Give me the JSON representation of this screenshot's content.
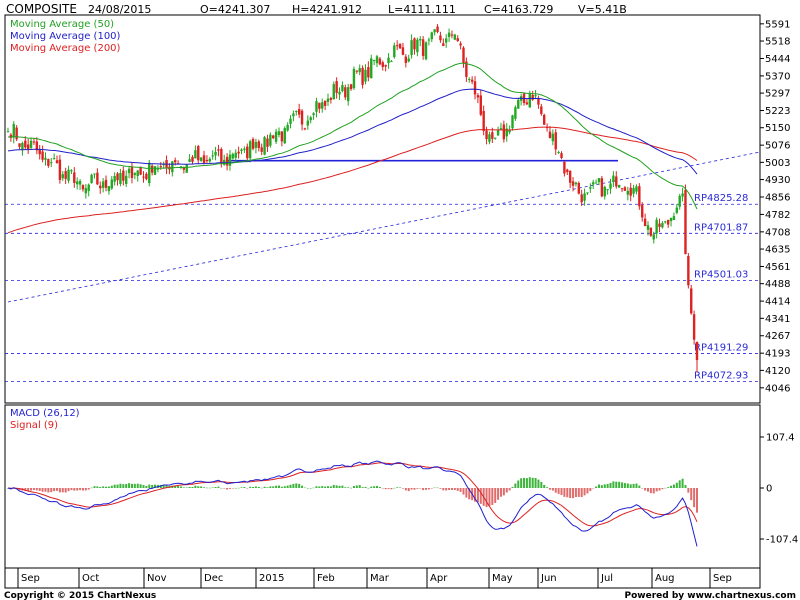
{
  "header": {
    "symbol": "COMPOSITE",
    "date": "24/08/2015",
    "open": "O=4241.307",
    "high": "H=4241.912",
    "low": "L=4111.111",
    "close": "C=4163.729",
    "volume": "V=5.41B"
  },
  "footer": {
    "copyright": "Copyright © 2015 ChartNexus",
    "powered": "Powered by www.chartnexus.com"
  },
  "colors": {
    "up": "#22a822",
    "down": "#dd2222",
    "ma50": "#22a022",
    "ma100": "#1f1fc8",
    "ma200": "#dd2020",
    "trend": "#2222dd",
    "macd": "#1f1fd0",
    "signal": "#dd2020"
  },
  "chart_data": [
    {
      "type": "candlestick",
      "title": "COMPOSITE",
      "ylim": [
        3990,
        5620
      ],
      "y_ticks": [
        "5591",
        "5518",
        "5444",
        "5370",
        "5297",
        "5223",
        "5150",
        "5076",
        "5003",
        "4930",
        "4856",
        "4782",
        "4708",
        "4635",
        "4561",
        "4488",
        "4414",
        "4341",
        "4267",
        "4193",
        "4120",
        "4046"
      ],
      "x_ticks": [
        "Sep",
        "Oct",
        "Nov",
        "Dec",
        "2015",
        "Feb",
        "Mar",
        "Apr",
        "May",
        "Jun",
        "Jul",
        "Aug",
        "Sep"
      ],
      "legend": [
        {
          "name": "Moving Average (50)",
          "color": "#22a022"
        },
        {
          "name": "Moving Average (100)",
          "color": "#1f1fc8"
        },
        {
          "name": "Moving Average (200)",
          "color": "#dd2020"
        }
      ],
      "resistance_levels": [
        {
          "label": "RP4825.28",
          "value": 4825.28
        },
        {
          "label": "RP4701.87",
          "value": 4701.87
        },
        {
          "label": "RP4501.03",
          "value": 4501.03
        },
        {
          "label": "RP4191.29",
          "value": 4191.29
        },
        {
          "label": "RP4072.93",
          "value": 4072.93
        }
      ],
      "key_closes": [
        {
          "period": "early Sep 2014",
          "close": 5135
        },
        {
          "period": "mid Oct 2014",
          "close": 4895
        },
        {
          "period": "late Nov 2014",
          "close": 5000
        },
        {
          "period": "mid Dec 2014",
          "close": 5020
        },
        {
          "period": "Jan 2015",
          "close": 5130
        },
        {
          "period": "early Mar 2015",
          "close": 5450
        },
        {
          "period": "mid Apr 2015",
          "close": 5545
        },
        {
          "period": "late Apr 2015",
          "close": 5060
        },
        {
          "period": "mid May 2015",
          "close": 5310
        },
        {
          "period": "early Jun 2015",
          "close": 4860
        },
        {
          "period": "early Jul 2015",
          "close": 4930
        },
        {
          "period": "mid Jul 2015",
          "close": 4690
        },
        {
          "period": "early Aug 2015",
          "close": 4840
        },
        {
          "period": "mid Aug 2015",
          "close": 4470
        },
        {
          "period": "24 Aug 2015",
          "close": 4163.729
        }
      ]
    },
    {
      "type": "line",
      "title": "MACD (26,12)",
      "ylim": [
        -150,
        150
      ],
      "y_ticks": [
        "107.4",
        "0",
        "-107.4"
      ],
      "series": [
        {
          "name": "MACD (26,12)",
          "color": "#1f1fd0"
        },
        {
          "name": "Signal (9)",
          "color": "#dd2020"
        }
      ],
      "histogram_label": "MACD - Signal"
    }
  ]
}
